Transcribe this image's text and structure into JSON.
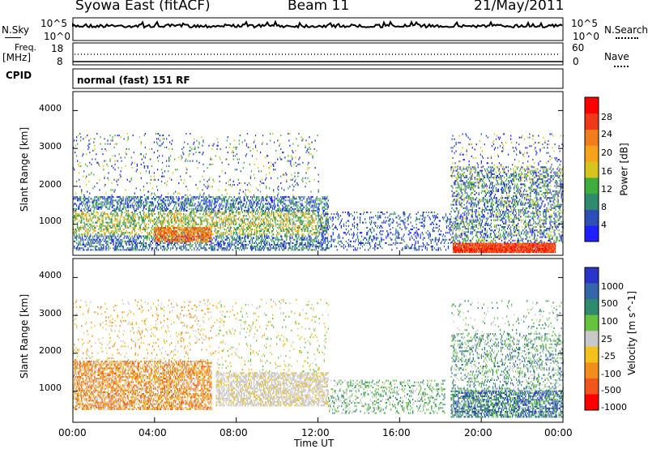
{
  "header": {
    "station": "Syowa East (fitACF)",
    "beam": "Beam 11",
    "date": "21/May/2011"
  },
  "status_panels": {
    "nsky_label": "N.Sky",
    "nsky_ticks": [
      "10^5",
      "10^0"
    ],
    "nsearch_label": "N.Search",
    "nsearch_ticks": [
      "10^5",
      "10^0"
    ],
    "freq_label": [
      "Freq.",
      "[MHz]"
    ],
    "freq_ticks": [
      "18",
      "8"
    ],
    "nave_label": "Nave",
    "nave_ticks": [
      "60",
      "0"
    ],
    "cpid_label": "CPID",
    "cpid_text": "normal (fast) 151 RF"
  },
  "axes": {
    "ylabel": "Slant Range [km]",
    "yticks": [
      "4000",
      "3000",
      "2000",
      "1000"
    ],
    "xlabel": "Time UT",
    "xticks": [
      "00:00",
      "04:00",
      "08:00",
      "12:00",
      "16:00",
      "20:00",
      "00:00"
    ]
  },
  "colors": {
    "power_scale": [
      "#1f1fff",
      "#2c50b8",
      "#2f8a6e",
      "#3fae3f",
      "#d7c41f",
      "#f5a21c",
      "#f07e1c",
      "#ee3a1a",
      "#ff0000"
    ],
    "velocity_scale": [
      "#2b34c8",
      "#3566a8",
      "#2f8a6e",
      "#67c23f",
      "#c8c8c8",
      "#f3c21a",
      "#f28c1c",
      "#f0561c",
      "#ff0000"
    ]
  },
  "chart_data": [
    {
      "type": "heatmap",
      "title": "Power",
      "colorbar_label": "Power [dB]",
      "colorbar_ticks": [
        "28",
        "24",
        "20",
        "16",
        "12",
        "8",
        "4"
      ],
      "xlabel": "",
      "ylabel": "Slant Range [km]",
      "xlim": [
        "00:00",
        "00:00"
      ],
      "ylim": [
        180,
        4500
      ],
      "x_ticks": [
        "00:00",
        "04:00",
        "08:00",
        "12:00",
        "16:00",
        "20:00",
        "00:00"
      ],
      "y_ticks": [
        1000,
        2000,
        3000,
        4000
      ],
      "regions": [
        {
          "t_start": 0.0,
          "t_end": 12.0,
          "range_start": 300,
          "range_end": 1700,
          "power": "8-24 dB"
        },
        {
          "t_start": 4.0,
          "t_end": 6.5,
          "range_start": 500,
          "range_end": 900,
          "power": "20-28 dB"
        },
        {
          "t_start": 18.5,
          "t_end": 23.5,
          "range_start": 250,
          "range_end": 550,
          "power": "24-30 dB"
        },
        {
          "t_start": 18.5,
          "t_end": 24.0,
          "range_start": 500,
          "range_end": 2500,
          "power": "4-16 dB"
        }
      ]
    },
    {
      "type": "heatmap",
      "title": "Velocity",
      "colorbar_label": "Velocity [m s^-1]",
      "colorbar_ticks": [
        "1000",
        "500",
        "100",
        "25",
        "-25",
        "-100",
        "-500",
        "-1000"
      ],
      "xlabel": "Time UT",
      "ylabel": "Slant Range [km]",
      "xlim": [
        "00:00",
        "00:00"
      ],
      "ylim": [
        180,
        4500
      ],
      "x_ticks": [
        "00:00",
        "04:00",
        "08:00",
        "12:00",
        "16:00",
        "20:00",
        "00:00"
      ],
      "y_ticks": [
        1000,
        2000,
        3000,
        4000
      ],
      "regions": [
        {
          "t_start": 0.0,
          "t_end": 6.8,
          "range_start": 600,
          "range_end": 1800,
          "velocity": "-100 to -500 m/s"
        },
        {
          "t_start": 7.0,
          "t_end": 12.5,
          "range_start": 600,
          "range_end": 1500,
          "velocity": "-25 to 25 m/s"
        },
        {
          "t_start": 12.5,
          "t_end": 18.0,
          "range_start": 400,
          "range_end": 1300,
          "velocity": "25 to 100 m/s"
        },
        {
          "t_start": 18.5,
          "t_end": 24.0,
          "range_start": 300,
          "range_end": 1800,
          "velocity": "100 to 1000 m/s"
        }
      ]
    }
  ]
}
